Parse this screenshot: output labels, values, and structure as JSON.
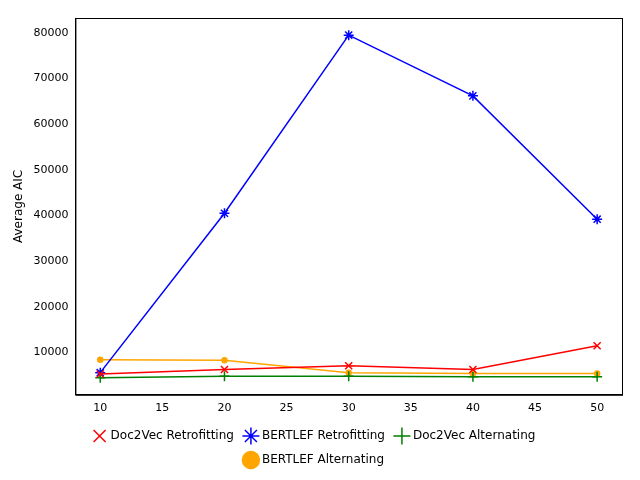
{
  "chart_data": {
    "type": "line",
    "y_label": "Average AIC",
    "x": [
      10,
      20,
      30,
      40,
      50
    ],
    "xlim": [
      8,
      52
    ],
    "xticks": [
      10,
      15,
      20,
      25,
      30,
      35,
      40,
      45,
      50
    ],
    "ylim": [
      750,
      83250
    ],
    "yticks": [
      10000,
      20000,
      30000,
      40000,
      50000,
      60000,
      70000,
      80000
    ],
    "grid": false,
    "legend": "bottom",
    "series": [
      {
        "name": "Doc2Vec Retrofitting",
        "color": "#ff0000",
        "marker": "x",
        "values": [
          5300,
          6300,
          7100,
          6300,
          11500
        ]
      },
      {
        "name": "Doc2Vec Alternating",
        "color": "#008000",
        "marker": "plus",
        "values": [
          4500,
          4800,
          4800,
          4700,
          4700
        ]
      },
      {
        "name": "BERTLEF Retrofitting",
        "color": "#0000ff",
        "marker": "star",
        "values": [
          5600,
          40500,
          79500,
          66200,
          39200
        ]
      },
      {
        "name": "BERTLEF Alternating",
        "color": "#ffa500",
        "marker": "dot",
        "values": [
          8400,
          8300,
          5600,
          5400,
          5400
        ]
      }
    ]
  }
}
